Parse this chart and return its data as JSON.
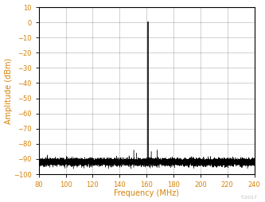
{
  "xlim": [
    80,
    240
  ],
  "ylim": [
    -100,
    10
  ],
  "xticks": [
    80,
    100,
    120,
    140,
    160,
    180,
    200,
    220,
    240
  ],
  "yticks": [
    -100,
    -90,
    -80,
    -70,
    -60,
    -50,
    -40,
    -30,
    -20,
    -10,
    0,
    10
  ],
  "xlabel": "Frequency (MHz)",
  "ylabel": "Amplitude (dBm)",
  "noise_floor_mean": -92,
  "noise_floor_std": 1.2,
  "main_spike_freq": 161.1328125,
  "main_spike_amp": 0,
  "secondary_spikes": [
    {
      "freq": 150.5,
      "amp": -84
    },
    {
      "freq": 152.5,
      "amp": -86
    },
    {
      "freq": 163.5,
      "amp": -85
    },
    {
      "freq": 168.0,
      "amp": -84
    }
  ],
  "axis_label_color": "#d4820a",
  "tick_label_color": "#d4820a",
  "grid_color": "#000000",
  "grid_alpha": 0.25,
  "grid_linewidth": 0.5,
  "line_color": "#000000",
  "spine_color": "#000000",
  "watermark": "©2017",
  "watermark_color": "#bbbbbb",
  "bg_color": "#ffffff"
}
